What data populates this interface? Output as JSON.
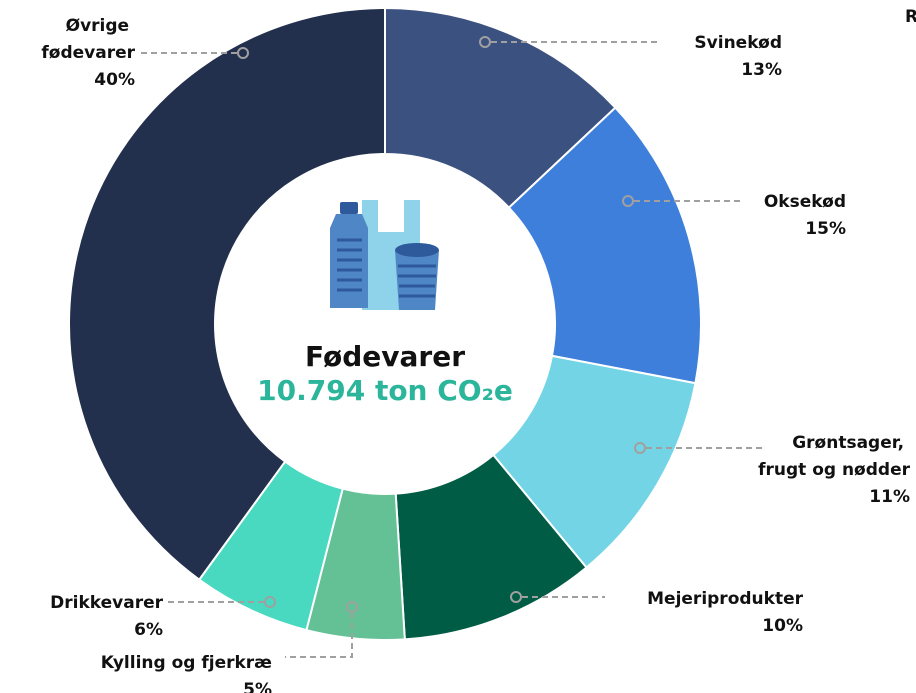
{
  "chart_data": {
    "type": "donut",
    "title": "Fødevarer",
    "subtitle": "10.794 ton CO₂e",
    "clipped_text": "R",
    "categories": [
      "Svinekød",
      "Oksekød",
      "Grøntsager, frugt og nødder",
      "Mejeriprodukter",
      "Kylling og fjerkræ",
      "Drikkevarer",
      "Øvrige fødevarer"
    ],
    "values": [
      13,
      15,
      11,
      10,
      5,
      6,
      40
    ],
    "value_labels": [
      "13%",
      "15%",
      "11%",
      "10%",
      "5%",
      "6%",
      "40%"
    ],
    "colors": [
      "#3b5180",
      "#3d7fdb",
      "#72d4e4",
      "#005c45",
      "#64c095",
      "#48d9c0",
      "#22304d"
    ]
  }
}
